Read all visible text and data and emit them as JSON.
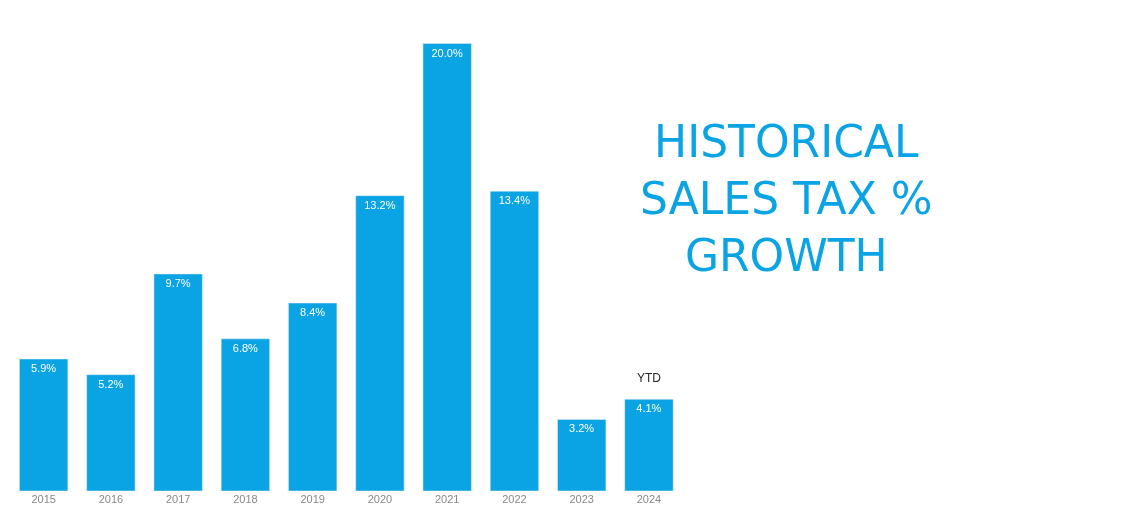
{
  "chart_data": {
    "type": "bar",
    "title": "HISTORICAL\nSALES TAX %\nGROWTH",
    "categories": [
      "2015",
      "2016",
      "2017",
      "2018",
      "2019",
      "2020",
      "2021",
      "2022",
      "2023",
      "2024"
    ],
    "values": [
      5.9,
      5.2,
      9.7,
      6.8,
      8.4,
      13.2,
      20.0,
      13.4,
      3.2,
      4.1
    ],
    "value_labels": [
      "5.9%",
      "5.2%",
      "9.7%",
      "6.8%",
      "8.4%",
      "13.2%",
      "20.0%",
      "13.4%",
      "3.2%",
      "4.1%"
    ],
    "color": "#0aa3e3",
    "annotations": [
      {
        "text": "YTD",
        "x": "2024",
        "y": 4.1
      }
    ]
  }
}
